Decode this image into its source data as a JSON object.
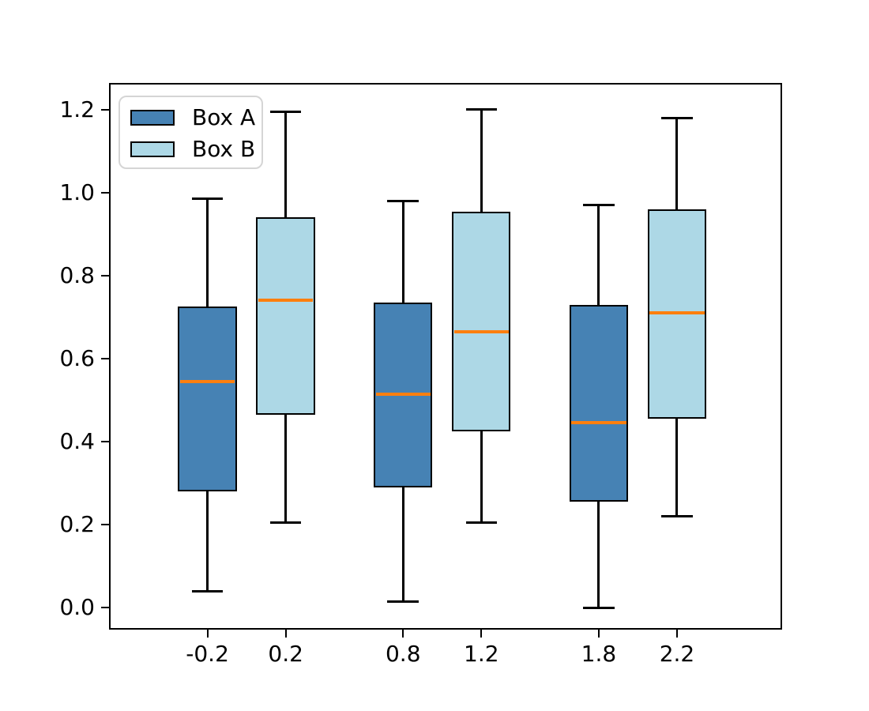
{
  "figure": {
    "background": "#ffffff",
    "title": ""
  },
  "chart_data": {
    "type": "boxplot",
    "title": "",
    "xlabel": "",
    "ylabel": "",
    "grid": false,
    "legend_position": "upper left",
    "xlim": [
      -0.703,
      2.737
    ],
    "ylim": [
      -0.053,
      1.264
    ],
    "xticks": {
      "values": [
        -0.2,
        0.2,
        0.8,
        1.2,
        1.8,
        2.2
      ],
      "labels": [
        "-0.2",
        "0.2",
        "0.8",
        "1.2",
        "1.8",
        "2.2"
      ]
    },
    "yticks": {
      "values": [
        0.0,
        0.2,
        0.4,
        0.6,
        0.8,
        1.0,
        1.2
      ],
      "labels": [
        "0.0",
        "0.2",
        "0.4",
        "0.6",
        "0.8",
        "1.0",
        "1.2"
      ]
    },
    "box_width": 0.3,
    "cap_width": 0.16,
    "edge_color": "#000000",
    "median_color": "#ff7f0e",
    "series": [
      {
        "name": "Box A",
        "fill": "#4682B4",
        "positions": [
          -0.2,
          0.8,
          1.8
        ],
        "boxes": [
          {
            "whislo": 0.04,
            "q1": 0.28,
            "med": 0.545,
            "q3": 0.725,
            "whishi": 0.985
          },
          {
            "whislo": 0.015,
            "q1": 0.29,
            "med": 0.515,
            "q3": 0.735,
            "whishi": 0.98
          },
          {
            "whislo": 0.0,
            "q1": 0.255,
            "med": 0.445,
            "q3": 0.73,
            "whishi": 0.97
          }
        ]
      },
      {
        "name": "Box B",
        "fill": "#ADD8E6",
        "positions": [
          0.2,
          1.2,
          2.2
        ],
        "boxes": [
          {
            "whislo": 0.205,
            "q1": 0.465,
            "med": 0.74,
            "q3": 0.94,
            "whishi": 1.195
          },
          {
            "whislo": 0.205,
            "q1": 0.425,
            "med": 0.665,
            "q3": 0.953,
            "whishi": 1.2
          },
          {
            "whislo": 0.22,
            "q1": 0.455,
            "med": 0.71,
            "q3": 0.96,
            "whishi": 1.18
          }
        ]
      }
    ],
    "legend": {
      "entries": [
        {
          "label": "Box A",
          "color": "#4682B4"
        },
        {
          "label": "Box B",
          "color": "#ADD8E6"
        }
      ]
    }
  }
}
